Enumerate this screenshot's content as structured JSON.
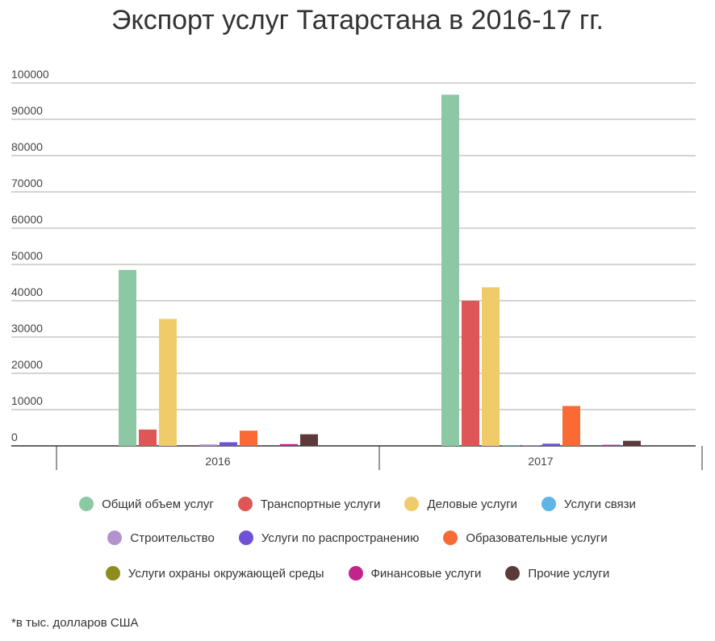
{
  "title": "Экспорт услуг Татарстана в 2016-17 гг.",
  "footnote": "*в тыс. долларов США",
  "chart_data": {
    "type": "bar",
    "categories": [
      "2016",
      "2017"
    ],
    "ylim": [
      0,
      100000
    ],
    "yticks": [
      0,
      10000,
      20000,
      30000,
      40000,
      50000,
      60000,
      70000,
      80000,
      90000,
      100000
    ],
    "grid": true,
    "legend_position": "bottom",
    "series": [
      {
        "name": "Общий объем услуг",
        "color": "#8dc8a4",
        "values": [
          48500,
          96800
        ]
      },
      {
        "name": "Транспортные услуги",
        "color": "#df5656",
        "values": [
          4500,
          40000
        ]
      },
      {
        "name": "Деловые услуги",
        "color": "#f0cb69",
        "values": [
          35000,
          43700
        ]
      },
      {
        "name": "Услуги связи",
        "color": "#5fb6e6",
        "values": [
          0,
          150
        ]
      },
      {
        "name": "Строительство",
        "color": "#b393cf",
        "values": [
          400,
          100
        ]
      },
      {
        "name": "Услуги по распространению",
        "color": "#6f50d6",
        "values": [
          1000,
          600
        ]
      },
      {
        "name": "Образовательные услуги",
        "color": "#fa6a35",
        "values": [
          4200,
          11000
        ]
      },
      {
        "name": "Услуги охраны окружающей среды",
        "color": "#8d8d1e",
        "values": [
          0,
          0
        ]
      },
      {
        "name": "Финансовые услуги",
        "color": "#c3238c",
        "values": [
          500,
          300
        ]
      },
      {
        "name": "Прочие услуги",
        "color": "#5c3a3a",
        "values": [
          3200,
          1400
        ]
      }
    ]
  }
}
